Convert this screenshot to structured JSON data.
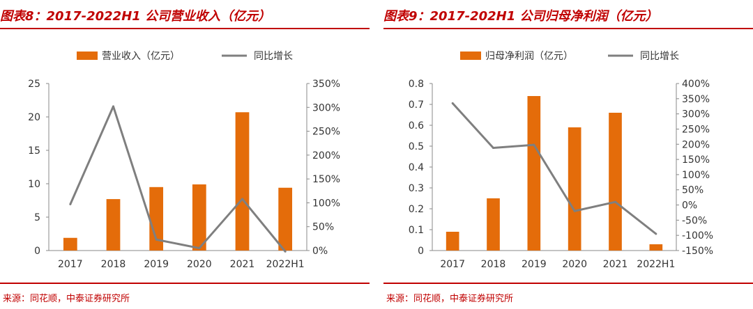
{
  "charts": [
    {
      "title": "图表8：2017-2022H1 公司营业收入（亿元）",
      "source": "来源：同花顺，中泰证券研究所",
      "colors": {
        "bar": "#e46c0a",
        "line": "#7f7f7f",
        "accent": "#c00000"
      },
      "chart_data": {
        "type": "bar",
        "categories": [
          "2017",
          "2018",
          "2019",
          "2020",
          "2021",
          "2022H1"
        ],
        "series": [
          {
            "name": "营业收入（亿元）",
            "type": "bar",
            "axis": "left",
            "values": [
              1.9,
              7.7,
              9.5,
              9.9,
              20.7,
              9.4
            ]
          },
          {
            "name": "同比增长",
            "type": "line",
            "axis": "right",
            "values": [
              97,
              302,
              23,
              5,
              108,
              -2
            ]
          }
        ],
        "y_left": {
          "min": 0,
          "max": 25,
          "ticks": [
            "0",
            "5",
            "10",
            "15",
            "20",
            "25"
          ]
        },
        "y_right": {
          "min": 0,
          "max": 350,
          "ticks": [
            "0%",
            "50%",
            "100%",
            "150%",
            "200%",
            "250%",
            "300%",
            "350%"
          ]
        },
        "legend_position": "top",
        "grid": false
      }
    },
    {
      "title": "图表9：2017-202H1 公司归母净利润（亿元）",
      "source": "来源：同花顺，中泰证券研究所",
      "colors": {
        "bar": "#e46c0a",
        "line": "#7f7f7f",
        "accent": "#c00000"
      },
      "chart_data": {
        "type": "bar",
        "categories": [
          "2017",
          "2018",
          "2019",
          "2020",
          "2021",
          "2022H1"
        ],
        "series": [
          {
            "name": "归母净利润（亿元）",
            "type": "bar",
            "axis": "left",
            "values": [
              0.09,
              0.25,
              0.74,
              0.59,
              0.66,
              0.03
            ]
          },
          {
            "name": "同比增长",
            "type": "line",
            "axis": "right",
            "values": [
              335,
              188,
              198,
              -20,
              10,
              -95
            ]
          }
        ],
        "y_left": {
          "min": 0,
          "max": 0.8,
          "ticks": [
            "0",
            "0.1",
            "0.2",
            "0.3",
            "0.4",
            "0.5",
            "0.6",
            "0.7",
            "0.8"
          ]
        },
        "y_right": {
          "min": -150,
          "max": 400,
          "ticks": [
            "-150%",
            "-100%",
            "-50%",
            "0%",
            "50%",
            "100%",
            "150%",
            "200%",
            "250%",
            "300%",
            "350%",
            "400%"
          ]
        },
        "legend_position": "top",
        "grid": false
      }
    }
  ]
}
